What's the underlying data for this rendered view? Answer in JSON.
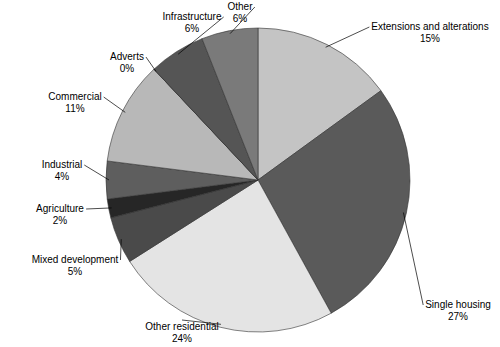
{
  "chart_data": {
    "type": "pie",
    "categories": [
      "Extensions and alterations",
      "Single housing",
      "Other residential",
      "Mixed development",
      "Agriculture",
      "Industrial",
      "Commercial",
      "Adverts",
      "Infrastructure",
      "Other"
    ],
    "values": [
      15,
      27,
      24,
      5,
      2,
      4,
      11,
      0,
      6,
      6
    ],
    "value_labels": [
      "15%",
      "27%",
      "24%",
      "5%",
      "2%",
      "4%",
      "11%",
      "0%",
      "6%",
      "6%"
    ],
    "colors": [
      "#c4c4c4",
      "#5a5a5a",
      "#e4e4e4",
      "#4a4a4a",
      "#262626",
      "#5e5e5e",
      "#b8b8b8",
      "#f0f0f0",
      "#555555",
      "#7a7a7a"
    ],
    "data_labels": true
  }
}
